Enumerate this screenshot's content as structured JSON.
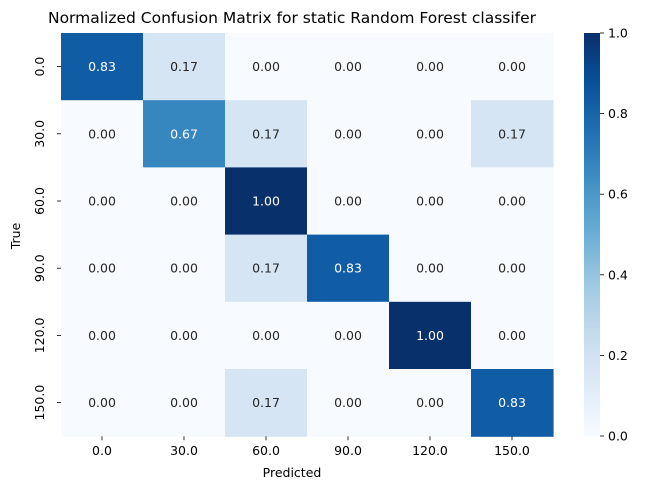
{
  "chart_data": {
    "type": "heatmap",
    "title": "Normalized Confusion Matrix for static Random Forest classifer",
    "xlabel": "Predicted",
    "ylabel": "True",
    "x_categories": [
      "0.0",
      "30.0",
      "60.0",
      "90.0",
      "120.0",
      "150.0"
    ],
    "y_categories": [
      "0.0",
      "30.0",
      "60.0",
      "90.0",
      "120.0",
      "150.0"
    ],
    "values": [
      [
        0.83,
        0.17,
        0.0,
        0.0,
        0.0,
        0.0
      ],
      [
        0.0,
        0.67,
        0.17,
        0.0,
        0.0,
        0.17
      ],
      [
        0.0,
        0.0,
        1.0,
        0.0,
        0.0,
        0.0
      ],
      [
        0.0,
        0.0,
        0.17,
        0.83,
        0.0,
        0.0
      ],
      [
        0.0,
        0.0,
        0.0,
        0.0,
        1.0,
        0.0
      ],
      [
        0.0,
        0.0,
        0.17,
        0.0,
        0.0,
        0.83
      ]
    ],
    "value_format": "0.00",
    "colormap": "Blues",
    "vmin": 0.0,
    "vmax": 1.0,
    "colorbar_ticks": [
      "0.0",
      "0.2",
      "0.4",
      "0.6",
      "0.8",
      "1.0"
    ],
    "grid": false,
    "legend": "colorbar-right"
  }
}
